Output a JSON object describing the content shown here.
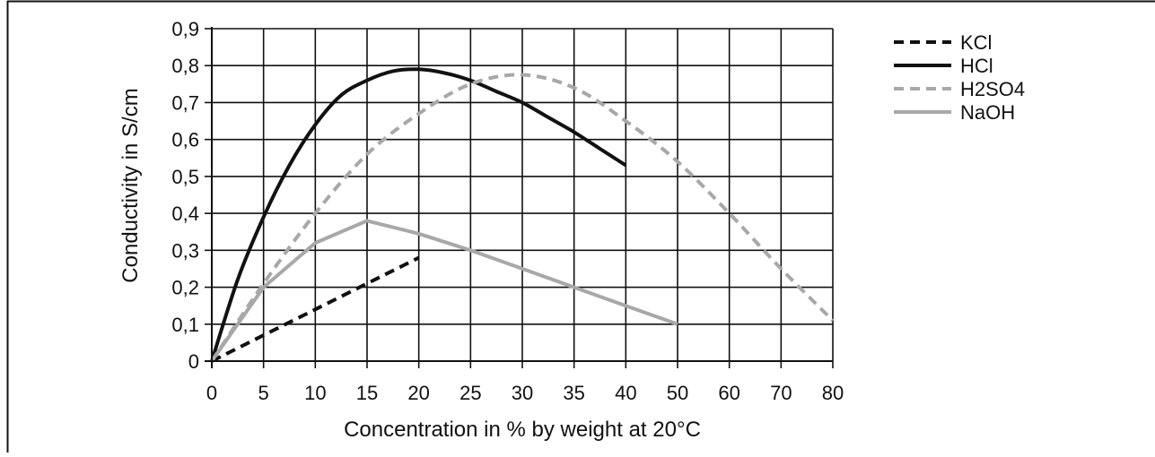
{
  "chart_data": {
    "type": "line",
    "title": "",
    "xlabel": "Concentration in % by weight at 20°C",
    "ylabel": "Conductivity in S/cm",
    "x_ticks": [
      "0",
      "5",
      "10",
      "15",
      "20",
      "25",
      "30",
      "35",
      "40",
      "50",
      "60",
      "70",
      "80"
    ],
    "y_ticks": [
      "0",
      "0,1",
      "0,2",
      "0,3",
      "0,4",
      "0,5",
      "0,6",
      "0,7",
      "0,8",
      "0,9"
    ],
    "x_scale": "piecewise: 5% steps from 0 to 40, 10% steps from 40 to 80",
    "xlim": [
      0,
      80
    ],
    "ylim": [
      0,
      0.9
    ],
    "grid": true,
    "legend_position": "right",
    "series": [
      {
        "name": "KCl",
        "style": "dashed",
        "color": "#111111",
        "points": [
          [
            0,
            0.0
          ],
          [
            5,
            0.07
          ],
          [
            10,
            0.14
          ],
          [
            15,
            0.21
          ],
          [
            20,
            0.28
          ]
        ]
      },
      {
        "name": "HCl",
        "style": "solid",
        "color": "#111111",
        "points": [
          [
            0,
            0.0
          ],
          [
            2.5,
            0.22
          ],
          [
            5,
            0.39
          ],
          [
            7.5,
            0.53
          ],
          [
            10,
            0.64
          ],
          [
            12.5,
            0.72
          ],
          [
            15,
            0.76
          ],
          [
            17.5,
            0.785
          ],
          [
            20,
            0.79
          ],
          [
            22.5,
            0.78
          ],
          [
            25,
            0.76
          ],
          [
            27.5,
            0.73
          ],
          [
            30,
            0.7
          ],
          [
            32.5,
            0.66
          ],
          [
            35,
            0.62
          ],
          [
            37.5,
            0.575
          ],
          [
            40,
            0.53
          ]
        ]
      },
      {
        "name": "H2SO4",
        "style": "dashed",
        "color": "#a8a8a8",
        "points": [
          [
            0,
            0.0
          ],
          [
            5,
            0.21
          ],
          [
            10,
            0.4
          ],
          [
            15,
            0.56
          ],
          [
            20,
            0.67
          ],
          [
            25,
            0.75
          ],
          [
            30,
            0.775
          ],
          [
            35,
            0.74
          ],
          [
            40,
            0.65
          ],
          [
            50,
            0.54
          ],
          [
            60,
            0.4
          ],
          [
            70,
            0.25
          ],
          [
            80,
            0.11
          ]
        ]
      },
      {
        "name": "NaOH",
        "style": "solid",
        "color": "#a8a8a8",
        "points": [
          [
            0,
            0.0
          ],
          [
            5,
            0.2
          ],
          [
            10,
            0.32
          ],
          [
            15,
            0.38
          ],
          [
            20,
            0.345
          ],
          [
            25,
            0.3
          ],
          [
            30,
            0.25
          ],
          [
            35,
            0.2
          ],
          [
            40,
            0.15
          ],
          [
            50,
            0.1
          ]
        ]
      }
    ]
  }
}
